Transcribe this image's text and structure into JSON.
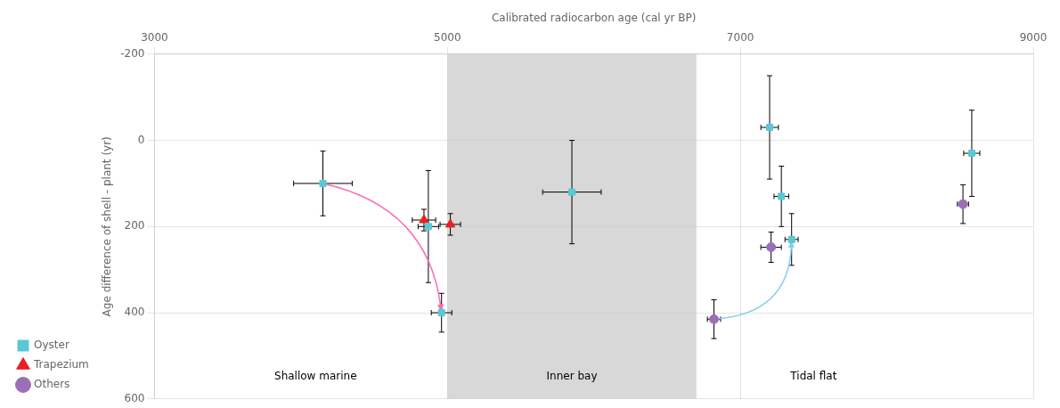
{
  "chart_data": {
    "type": "scatter",
    "xlabel": "Calibrated radiocarbon age (cal yr BP)",
    "ylabel": "Age difference of shell - plant (yr)",
    "xlim": [
      3000,
      9000
    ],
    "ylim": [
      600,
      -200
    ],
    "xticks": [
      3000,
      5000,
      7000,
      9000
    ],
    "yticks": [
      -200,
      0,
      200,
      400,
      600
    ],
    "grid": true,
    "legend": "lower left",
    "series": [
      {
        "name": "Oyster",
        "color": "#5BC8D5",
        "marker": "square",
        "x": [
          4150,
          4870,
          4960,
          5850,
          7200,
          7280,
          7350,
          8580
        ],
        "values": [
          100,
          200,
          400,
          120,
          -30,
          130,
          230,
          30
        ],
        "xerr": [
          200,
          70,
          70,
          200,
          60,
          50,
          45,
          55
        ],
        "yerr": [
          75,
          130,
          45,
          120,
          120,
          70,
          60,
          100
        ]
      },
      {
        "name": "Trapezium",
        "color": "#E82020",
        "marker": "triangle",
        "x": [
          4840,
          5020
        ],
        "values": [
          185,
          195
        ],
        "xerr": [
          80,
          70
        ],
        "yerr": [
          25,
          25
        ]
      },
      {
        "name": "Others",
        "color": "#9B6FB5",
        "marker": "circle",
        "x": [
          6820,
          7210,
          8520
        ],
        "values": [
          415,
          248,
          148
        ],
        "xerr": [
          45,
          70,
          38
        ],
        "yerr": [
          45,
          35,
          45
        ]
      }
    ],
    "spans": [
      {
        "x": [
          5000,
          6700
        ],
        "color": "#C8C8C8"
      }
    ],
    "annotations": [
      {
        "text": "Shallow marine",
        "x": 4100,
        "y": 560
      },
      {
        "text": "Inner bay",
        "x": 5850,
        "y": 560
      },
      {
        "text": "Tidal flat",
        "x": 7500,
        "y": 560
      }
    ],
    "arrows": [
      {
        "start": [
          4150,
          100
        ],
        "end": [
          4960,
          400
        ],
        "color": "#FF69B4"
      },
      {
        "start": [
          6820,
          415
        ],
        "end": [
          7350,
          230
        ],
        "color": "#87CEEB"
      }
    ]
  }
}
